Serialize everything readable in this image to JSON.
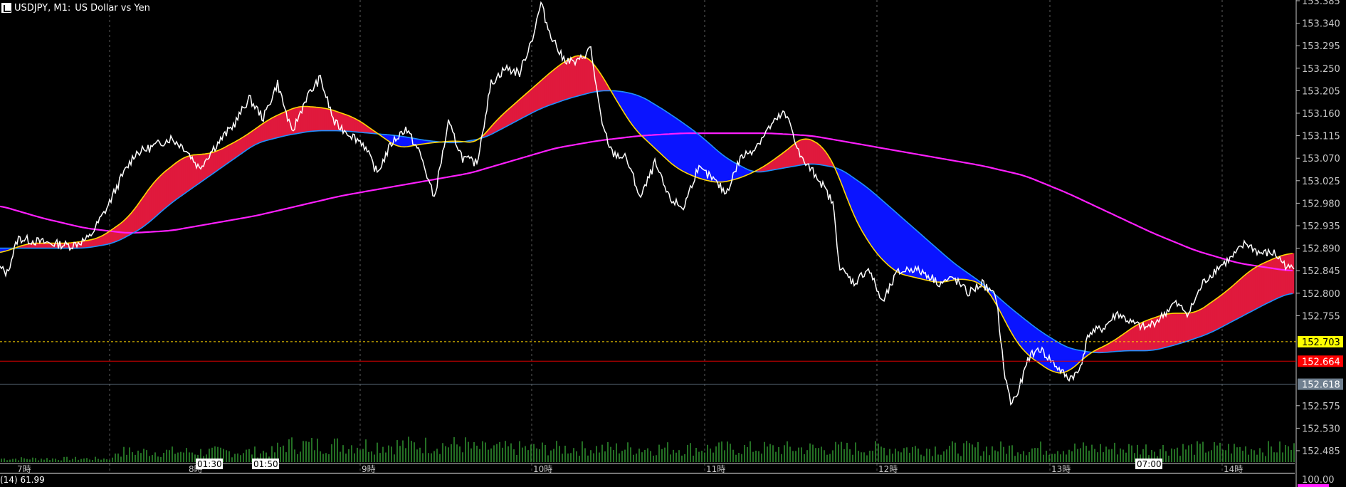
{
  "header": {
    "symbol": "USDJPY, M1:",
    "description": "US Dollar vs Yen"
  },
  "indicator": {
    "label": "(14) 61.99"
  },
  "colors": {
    "background": "#000000",
    "grid": "#5a5a5a",
    "price": "#ffffff",
    "ma_fast": "#ffd700",
    "ma_mid": "#1e90ff",
    "ma_slow": "#ff1fff",
    "cloud_up": "#e0193d",
    "cloud_down": "#0a14ff",
    "volume": "#2e8b2e",
    "ask_line": "#e00000",
    "bid_line": "#607080"
  },
  "chart_data": {
    "type": "line",
    "symbol": "USDJPY",
    "timeframe": "M1",
    "y_axis": {
      "ticks": [
        "153.385",
        "153.340",
        "153.295",
        "153.250",
        "153.205",
        "153.160",
        "153.115",
        "153.070",
        "153.025",
        "152.980",
        "152.935",
        "152.890",
        "152.845",
        "152.800",
        "152.755",
        "152.575",
        "152.530",
        "152.485"
      ],
      "range": [
        152.47,
        153.39
      ]
    },
    "x_axis": {
      "labels": [
        "7時",
        "8時",
        "9時",
        "10時",
        "11時",
        "12時",
        "13時",
        "14時"
      ],
      "time_markers": [
        "01:30",
        "01:50",
        "07:00"
      ]
    },
    "price_labels": {
      "current": "152.703",
      "ask": "152.664",
      "bid": "152.618"
    },
    "lower_axis_label": "100.00",
    "price_key": [
      [
        0,
        152.85
      ],
      [
        10,
        152.84
      ],
      [
        25,
        152.91
      ],
      [
        45,
        152.905
      ],
      [
        70,
        152.9
      ],
      [
        100,
        152.895
      ],
      [
        125,
        152.91
      ],
      [
        150,
        152.97
      ],
      [
        170,
        153.03
      ],
      [
        190,
        153.08
      ],
      [
        210,
        153.09
      ],
      [
        240,
        153.11
      ],
      [
        260,
        153.09
      ],
      [
        280,
        153.05
      ],
      [
        300,
        153.09
      ],
      [
        330,
        153.14
      ],
      [
        350,
        153.19
      ],
      [
        370,
        153.15
      ],
      [
        390,
        153.22
      ],
      [
        410,
        153.12
      ],
      [
        430,
        153.19
      ],
      [
        450,
        153.23
      ],
      [
        470,
        153.14
      ],
      [
        490,
        153.12
      ],
      [
        510,
        153.1
      ],
      [
        530,
        153.04
      ],
      [
        550,
        153.1
      ],
      [
        570,
        153.13
      ],
      [
        590,
        153.08
      ],
      [
        610,
        152.99
      ],
      [
        630,
        153.14
      ],
      [
        650,
        153.07
      ],
      [
        670,
        153.06
      ],
      [
        690,
        153.22
      ],
      [
        710,
        153.25
      ],
      [
        730,
        153.24
      ],
      [
        750,
        153.32
      ],
      [
        760,
        153.38
      ],
      [
        770,
        153.33
      ],
      [
        790,
        153.27
      ],
      [
        810,
        153.26
      ],
      [
        830,
        153.29
      ],
      [
        845,
        153.14
      ],
      [
        860,
        153.08
      ],
      [
        880,
        153.07
      ],
      [
        900,
        152.99
      ],
      [
        920,
        153.06
      ],
      [
        940,
        152.99
      ],
      [
        960,
        152.97
      ],
      [
        980,
        153.05
      ],
      [
        1000,
        153.03
      ],
      [
        1020,
        153.0
      ],
      [
        1040,
        153.07
      ],
      [
        1060,
        153.09
      ],
      [
        1080,
        153.13
      ],
      [
        1100,
        153.16
      ],
      [
        1110,
        153.14
      ],
      [
        1125,
        153.07
      ],
      [
        1150,
        153.03
      ],
      [
        1170,
        152.98
      ],
      [
        1180,
        152.85
      ],
      [
        1200,
        152.82
      ],
      [
        1220,
        152.85
      ],
      [
        1240,
        152.78
      ],
      [
        1260,
        152.84
      ],
      [
        1280,
        152.85
      ],
      [
        1300,
        152.84
      ],
      [
        1320,
        152.82
      ],
      [
        1340,
        152.83
      ],
      [
        1360,
        152.8
      ],
      [
        1380,
        152.82
      ],
      [
        1400,
        152.79
      ],
      [
        1410,
        152.65
      ],
      [
        1420,
        152.58
      ],
      [
        1430,
        152.6
      ],
      [
        1445,
        152.67
      ],
      [
        1460,
        152.69
      ],
      [
        1480,
        152.66
      ],
      [
        1500,
        152.63
      ],
      [
        1515,
        152.64
      ],
      [
        1530,
        152.72
      ],
      [
        1550,
        152.73
      ],
      [
        1570,
        152.76
      ],
      [
        1590,
        152.74
      ],
      [
        1610,
        152.73
      ],
      [
        1630,
        152.75
      ],
      [
        1650,
        152.78
      ],
      [
        1670,
        152.76
      ],
      [
        1690,
        152.82
      ],
      [
        1710,
        152.85
      ],
      [
        1730,
        152.87
      ],
      [
        1750,
        152.9
      ],
      [
        1770,
        152.88
      ],
      [
        1790,
        152.88
      ],
      [
        1810,
        152.85
      ]
    ],
    "ma_fast_key": [
      [
        0,
        152.88
      ],
      [
        40,
        152.9
      ],
      [
        100,
        152.9
      ],
      [
        140,
        152.91
      ],
      [
        180,
        152.95
      ],
      [
        220,
        153.03
      ],
      [
        260,
        153.075
      ],
      [
        300,
        153.08
      ],
      [
        340,
        153.11
      ],
      [
        380,
        153.15
      ],
      [
        420,
        153.175
      ],
      [
        460,
        153.17
      ],
      [
        500,
        153.15
      ],
      [
        530,
        153.12
      ],
      [
        560,
        153.09
      ],
      [
        600,
        153.1
      ],
      [
        640,
        153.105
      ],
      [
        670,
        153.1
      ],
      [
        700,
        153.15
      ],
      [
        740,
        153.2
      ],
      [
        780,
        153.25
      ],
      [
        800,
        153.27
      ],
      [
        820,
        153.28
      ],
      [
        840,
        153.25
      ],
      [
        860,
        153.2
      ],
      [
        890,
        153.13
      ],
      [
        920,
        153.09
      ],
      [
        950,
        153.05
      ],
      [
        980,
        153.03
      ],
      [
        1010,
        153.02
      ],
      [
        1040,
        153.03
      ],
      [
        1070,
        153.05
      ],
      [
        1100,
        153.08
      ],
      [
        1130,
        153.115
      ],
      [
        1160,
        153.09
      ],
      [
        1180,
        153.03
      ],
      [
        1200,
        152.95
      ],
      [
        1230,
        152.88
      ],
      [
        1260,
        152.84
      ],
      [
        1290,
        152.83
      ],
      [
        1320,
        152.82
      ],
      [
        1350,
        152.83
      ],
      [
        1380,
        152.82
      ],
      [
        1400,
        152.78
      ],
      [
        1420,
        152.72
      ],
      [
        1440,
        152.68
      ],
      [
        1460,
        152.66
      ],
      [
        1480,
        152.64
      ],
      [
        1500,
        152.64
      ],
      [
        1530,
        152.68
      ],
      [
        1560,
        152.7
      ],
      [
        1600,
        152.74
      ],
      [
        1640,
        152.76
      ],
      [
        1680,
        152.76
      ],
      [
        1720,
        152.8
      ],
      [
        1760,
        152.85
      ],
      [
        1790,
        152.87
      ],
      [
        1810,
        152.88
      ]
    ],
    "ma_mid_key": [
      [
        0,
        152.89
      ],
      [
        60,
        152.89
      ],
      [
        120,
        152.89
      ],
      [
        160,
        152.9
      ],
      [
        200,
        152.93
      ],
      [
        240,
        152.98
      ],
      [
        280,
        153.02
      ],
      [
        320,
        153.06
      ],
      [
        360,
        153.1
      ],
      [
        400,
        153.115
      ],
      [
        440,
        153.125
      ],
      [
        480,
        153.125
      ],
      [
        520,
        153.12
      ],
      [
        560,
        153.115
      ],
      [
        600,
        153.105
      ],
      [
        640,
        153.1
      ],
      [
        680,
        153.11
      ],
      [
        720,
        153.14
      ],
      [
        760,
        153.17
      ],
      [
        800,
        153.19
      ],
      [
        840,
        153.205
      ],
      [
        870,
        153.205
      ],
      [
        900,
        153.195
      ],
      [
        940,
        153.16
      ],
      [
        980,
        153.12
      ],
      [
        1020,
        153.07
      ],
      [
        1060,
        153.04
      ],
      [
        1100,
        153.05
      ],
      [
        1140,
        153.06
      ],
      [
        1180,
        153.05
      ],
      [
        1220,
        153.01
      ],
      [
        1260,
        152.96
      ],
      [
        1300,
        152.91
      ],
      [
        1340,
        152.86
      ],
      [
        1380,
        152.82
      ],
      [
        1420,
        152.77
      ],
      [
        1460,
        152.725
      ],
      [
        1500,
        152.69
      ],
      [
        1540,
        152.68
      ],
      [
        1580,
        152.685
      ],
      [
        1620,
        152.685
      ],
      [
        1660,
        152.7
      ],
      [
        1700,
        152.72
      ],
      [
        1740,
        152.75
      ],
      [
        1780,
        152.78
      ],
      [
        1810,
        152.8
      ]
    ],
    "ma_slow_key": [
      [
        0,
        152.975
      ],
      [
        60,
        152.95
      ],
      [
        120,
        152.93
      ],
      [
        180,
        152.92
      ],
      [
        240,
        152.925
      ],
      [
        300,
        152.94
      ],
      [
        360,
        152.955
      ],
      [
        420,
        152.975
      ],
      [
        480,
        152.995
      ],
      [
        540,
        153.01
      ],
      [
        600,
        153.025
      ],
      [
        660,
        153.04
      ],
      [
        720,
        153.065
      ],
      [
        780,
        153.09
      ],
      [
        840,
        153.105
      ],
      [
        900,
        153.115
      ],
      [
        960,
        153.12
      ],
      [
        1020,
        153.12
      ],
      [
        1080,
        153.12
      ],
      [
        1140,
        153.115
      ],
      [
        1200,
        153.1
      ],
      [
        1260,
        153.085
      ],
      [
        1320,
        153.07
      ],
      [
        1380,
        153.055
      ],
      [
        1440,
        153.035
      ],
      [
        1500,
        153.0
      ],
      [
        1560,
        152.96
      ],
      [
        1620,
        152.92
      ],
      [
        1680,
        152.885
      ],
      [
        1740,
        152.86
      ],
      [
        1810,
        152.845
      ]
    ]
  }
}
